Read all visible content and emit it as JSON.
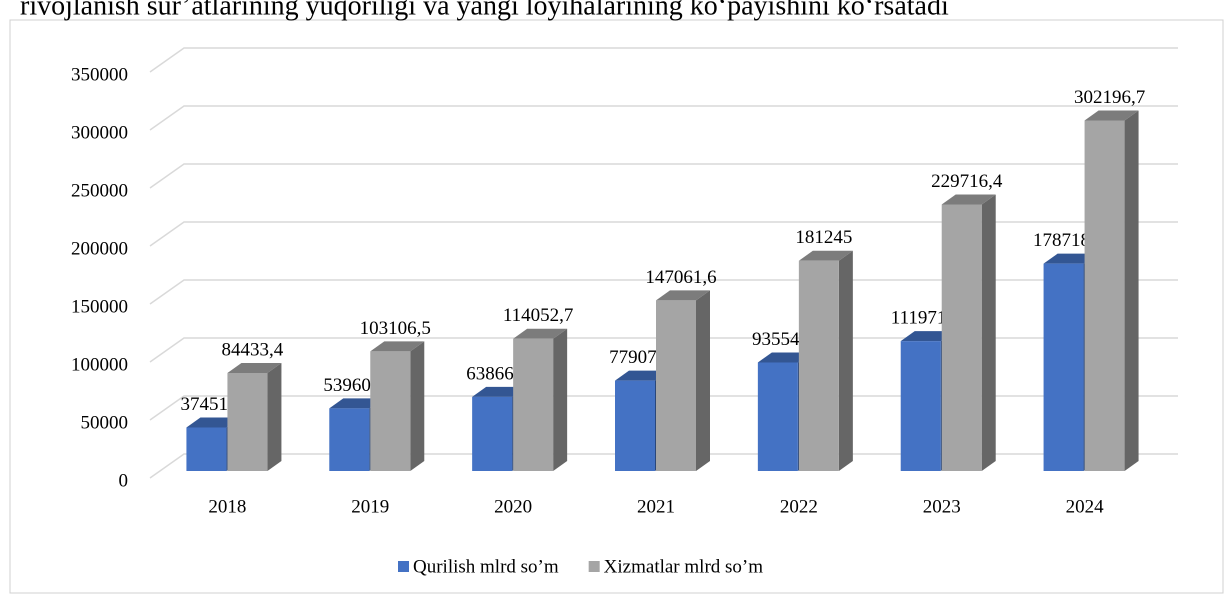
{
  "chart_data": {
    "type": "bar3d",
    "title": "rivojlanish sur’atlarining yuqoriligi va yangi loyihalarining ko‘payishini ko‘rsatadi",
    "categories": [
      "2018",
      "2019",
      "2020",
      "2021",
      "2022",
      "2023",
      "2024"
    ],
    "series": [
      {
        "name": "Qurilish mlrd so’m",
        "color": "#4472c4",
        "values": [
          37451.7,
          53960.9,
          63866.6,
          77907.1,
          93554.5,
          111971.3,
          178718.9
        ],
        "value_labels": [
          "37451,7",
          "53960,9",
          "63866,6",
          "77907,1",
          "93554,5",
          "111971,3",
          "178718,9"
        ]
      },
      {
        "name": "Xizmatlar mlrd so’m",
        "color": "#a5a5a5",
        "values": [
          84433.4,
          103106.5,
          114052.7,
          147061.6,
          181245,
          229716.4,
          302196.7
        ],
        "value_labels": [
          "84433,4",
          "103106,5",
          "114052,7",
          "147061,6",
          "181245",
          "229716,4",
          "302196,7"
        ]
      }
    ],
    "ylim": [
      0,
      350000
    ],
    "yticks": [
      0,
      50000,
      100000,
      150000,
      200000,
      250000,
      300000,
      350000
    ],
    "grid": true,
    "legend": "bottom"
  }
}
